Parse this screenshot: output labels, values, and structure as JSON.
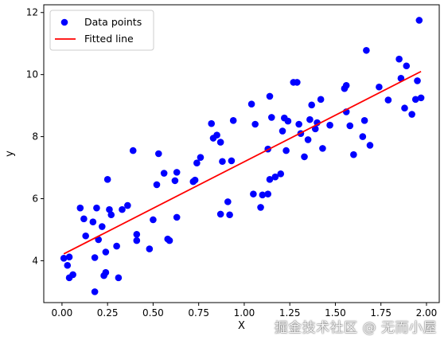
{
  "chart_data": {
    "type": "scatter",
    "xlabel": "X",
    "ylabel": "y",
    "xlim": [
      -0.1,
      2.07
    ],
    "ylim": [
      2.65,
      12.25
    ],
    "xticks": [
      0.0,
      0.25,
      0.5,
      0.75,
      1.0,
      1.25,
      1.5,
      1.75,
      2.0
    ],
    "xtick_labels": [
      "0.00",
      "0.25",
      "0.50",
      "0.75",
      "1.00",
      "1.25",
      "1.50",
      "1.75",
      "2.00"
    ],
    "yticks": [
      4,
      6,
      8,
      10,
      12
    ],
    "ytick_labels": [
      "4",
      "6",
      "8",
      "10",
      "12"
    ],
    "grid": false,
    "legend_position": "upper-left",
    "series": [
      {
        "name": "Data points",
        "kind": "scatter",
        "color": "#0000ff",
        "points": [
          [
            0.01,
            4.08
          ],
          [
            0.03,
            3.85
          ],
          [
            0.04,
            3.45
          ],
          [
            0.04,
            4.12
          ],
          [
            0.06,
            3.55
          ],
          [
            0.1,
            5.7
          ],
          [
            0.12,
            5.35
          ],
          [
            0.13,
            4.8
          ],
          [
            0.17,
            5.25
          ],
          [
            0.18,
            3.0
          ],
          [
            0.18,
            4.1
          ],
          [
            0.19,
            5.7
          ],
          [
            0.2,
            4.68
          ],
          [
            0.22,
            5.1
          ],
          [
            0.23,
            3.52
          ],
          [
            0.24,
            3.62
          ],
          [
            0.24,
            4.28
          ],
          [
            0.25,
            6.62
          ],
          [
            0.26,
            5.65
          ],
          [
            0.27,
            5.48
          ],
          [
            0.3,
            4.47
          ],
          [
            0.31,
            3.45
          ],
          [
            0.33,
            5.65
          ],
          [
            0.36,
            5.78
          ],
          [
            0.39,
            7.55
          ],
          [
            0.41,
            4.65
          ],
          [
            0.41,
            4.85
          ],
          [
            0.48,
            4.38
          ],
          [
            0.5,
            5.32
          ],
          [
            0.52,
            6.45
          ],
          [
            0.53,
            7.45
          ],
          [
            0.56,
            6.82
          ],
          [
            0.58,
            4.7
          ],
          [
            0.59,
            4.65
          ],
          [
            0.62,
            6.58
          ],
          [
            0.63,
            5.4
          ],
          [
            0.63,
            6.85
          ],
          [
            0.72,
            6.55
          ],
          [
            0.73,
            6.6
          ],
          [
            0.74,
            7.15
          ],
          [
            0.76,
            7.33
          ],
          [
            0.82,
            8.42
          ],
          [
            0.83,
            7.95
          ],
          [
            0.85,
            8.05
          ],
          [
            0.87,
            5.5
          ],
          [
            0.87,
            7.82
          ],
          [
            0.88,
            7.2
          ],
          [
            0.91,
            5.9
          ],
          [
            0.92,
            5.48
          ],
          [
            0.93,
            7.22
          ],
          [
            0.94,
            8.52
          ],
          [
            1.04,
            9.05
          ],
          [
            1.05,
            6.15
          ],
          [
            1.06,
            8.4
          ],
          [
            1.09,
            5.72
          ],
          [
            1.1,
            6.12
          ],
          [
            1.13,
            6.15
          ],
          [
            1.13,
            7.6
          ],
          [
            1.14,
            6.62
          ],
          [
            1.15,
            8.62
          ],
          [
            1.14,
            9.3
          ],
          [
            1.17,
            6.7
          ],
          [
            1.2,
            6.8
          ],
          [
            1.21,
            8.18
          ],
          [
            1.22,
            8.6
          ],
          [
            1.23,
            7.55
          ],
          [
            1.24,
            8.5
          ],
          [
            1.27,
            9.75
          ],
          [
            1.29,
            9.75
          ],
          [
            1.3,
            8.4
          ],
          [
            1.31,
            8.1
          ],
          [
            1.33,
            7.35
          ],
          [
            1.35,
            7.9
          ],
          [
            1.36,
            8.55
          ],
          [
            1.37,
            9.02
          ],
          [
            1.39,
            8.25
          ],
          [
            1.4,
            8.45
          ],
          [
            1.42,
            9.2
          ],
          [
            1.43,
            7.62
          ],
          [
            1.47,
            8.37
          ],
          [
            1.55,
            9.55
          ],
          [
            1.56,
            9.65
          ],
          [
            1.56,
            8.8
          ],
          [
            1.58,
            8.35
          ],
          [
            1.6,
            7.42
          ],
          [
            1.65,
            8.0
          ],
          [
            1.66,
            8.52
          ],
          [
            1.67,
            10.78
          ],
          [
            1.69,
            7.72
          ],
          [
            1.74,
            9.6
          ],
          [
            1.79,
            9.18
          ],
          [
            1.85,
            10.5
          ],
          [
            1.86,
            9.88
          ],
          [
            1.88,
            8.92
          ],
          [
            1.89,
            10.28
          ],
          [
            1.92,
            8.72
          ],
          [
            1.94,
            9.2
          ],
          [
            1.95,
            9.8
          ],
          [
            1.96,
            11.75
          ],
          [
            1.97,
            9.25
          ]
        ]
      },
      {
        "name": "Fitted line",
        "kind": "line",
        "color": "#ff0000",
        "x": [
          0.01,
          1.97
        ],
        "y": [
          4.22,
          10.1
        ]
      }
    ]
  },
  "watermark": {
    "text": "掘金技术社区 @ 无而小屋"
  }
}
